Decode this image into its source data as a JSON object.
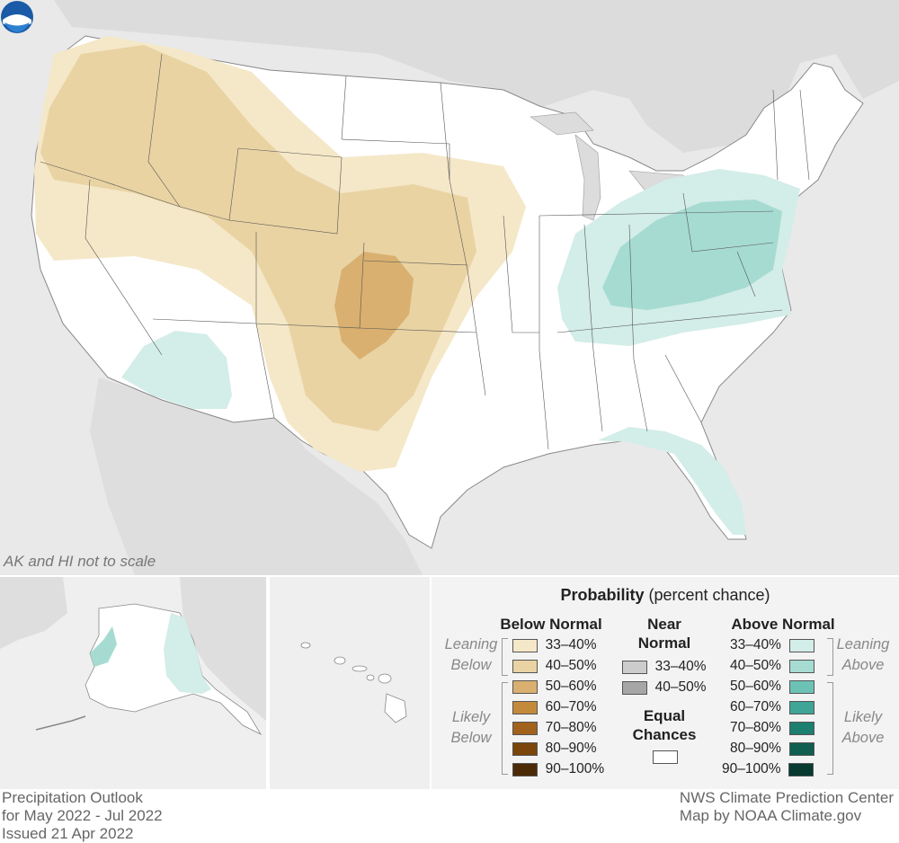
{
  "map": {
    "scale_note": "AK and HI not to scale",
    "colors": {
      "background": "#e9e9e9",
      "land": "#ffffff",
      "lean_below": "#f5e8c8",
      "below_40_50": "#e9d3a3",
      "below_50_60": "#d9b070",
      "lean_above": "#d3ede8",
      "above_40_50": "#a6dbd2"
    }
  },
  "legend": {
    "title_bold": "Probability",
    "title_rest": "(percent chance)",
    "below": {
      "header": "Below Normal",
      "lean_label": [
        "Leaning",
        "Below"
      ],
      "likely_label": [
        "Likely",
        "Below"
      ],
      "items": [
        {
          "label": "33–40%",
          "color": "#f5e8c8"
        },
        {
          "label": "40–50%",
          "color": "#e9d3a3"
        },
        {
          "label": "50–60%",
          "color": "#d9b070"
        },
        {
          "label": "60–70%",
          "color": "#c48a3c"
        },
        {
          "label": "70–80%",
          "color": "#a2621c"
        },
        {
          "label": "80–90%",
          "color": "#7b4609"
        },
        {
          "label": "90–100%",
          "color": "#4c2a06"
        }
      ]
    },
    "near": {
      "header": [
        "Near",
        "Normal"
      ],
      "items": [
        {
          "label": "33–40%",
          "color": "#cccccc"
        },
        {
          "label": "40–50%",
          "color": "#a6a6a6"
        }
      ]
    },
    "equal": {
      "header": [
        "Equal",
        "Chances"
      ],
      "color": "#ffffff"
    },
    "above": {
      "header": "Above Normal",
      "lean_label": [
        "Leaning",
        "Above"
      ],
      "likely_label": [
        "Likely",
        "Above"
      ],
      "items": [
        {
          "label": "33–40%",
          "color": "#d3ede8"
        },
        {
          "label": "40–50%",
          "color": "#a6dbd2"
        },
        {
          "label": "50–60%",
          "color": "#6cc3b5"
        },
        {
          "label": "60–70%",
          "color": "#3fa597"
        },
        {
          "label": "70–80%",
          "color": "#1d7f70"
        },
        {
          "label": "80–90%",
          "color": "#0f5e50"
        },
        {
          "label": "90–100%",
          "color": "#073a30"
        }
      ]
    }
  },
  "footer": {
    "left": [
      "Precipitation Outlook",
      "for May 2022 - Jul 2022",
      "Issued 21 Apr 2022"
    ],
    "right": [
      "NWS Climate Prediction Center",
      "Map by NOAA Climate.gov"
    ]
  },
  "logo": {
    "text": "NOAA"
  }
}
